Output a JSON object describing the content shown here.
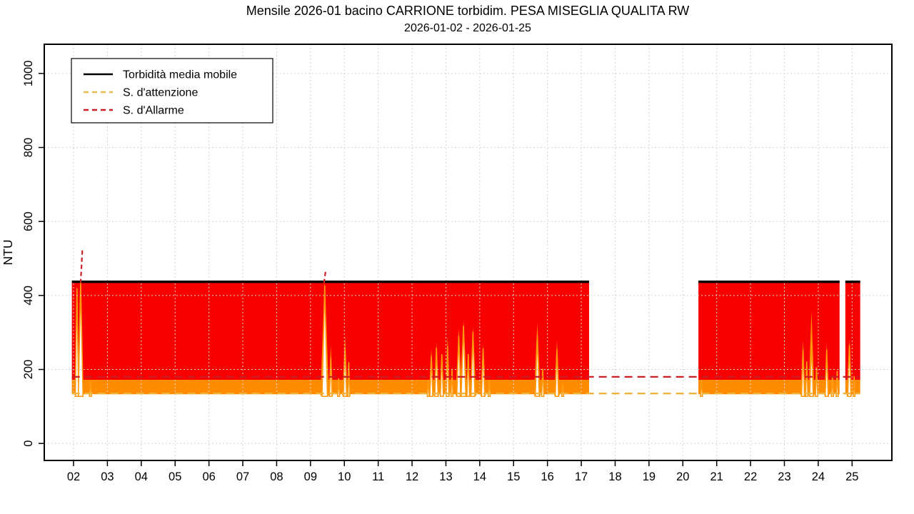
{
  "chart_data": {
    "type": "area",
    "title": "Mensile 2026-01 bacino CARRIONE torbidim. PESA MISEGLIA QUALITA RW",
    "subtitle": "2026-01-02 - 2026-01-25",
    "ylabel": "NTU",
    "x_unit": "day of month, January 2026",
    "x_range": [
      1.135,
      26.175
    ],
    "y_range": [
      -46,
      1079
    ],
    "y_ticks": [
      0,
      200,
      400,
      600,
      800,
      1000
    ],
    "x_tick_labels": [
      "02",
      "03",
      "04",
      "05",
      "06",
      "07",
      "08",
      "09",
      "10",
      "11",
      "12",
      "13",
      "14",
      "15",
      "16",
      "17",
      "18",
      "19",
      "20",
      "21",
      "22",
      "23",
      "24",
      "25"
    ],
    "grid": {
      "on": true,
      "color": "#d4d4d4"
    },
    "legend": {
      "position": "top-left",
      "items": [
        {
          "label": "Torbidità media mobile",
          "color": "#000000",
          "dash": false
        },
        {
          "label": "S. d'attenzione",
          "color": "#e8bb4e",
          "dash": true
        },
        {
          "label": "S. d'Allarme",
          "color": "#c92028",
          "dash": true
        }
      ]
    },
    "series": {
      "moving_average": {
        "name": "Torbidità media mobile",
        "color": "#000000",
        "value_ntu": 437,
        "segments_days": [
          [
            1.95,
            17.23
          ],
          [
            20.46,
            24.63
          ],
          [
            24.8,
            25.24
          ]
        ]
      },
      "attention_threshold": {
        "name": "S. d'attenzione",
        "color": "#edb33c",
        "value_ntu": 135,
        "span_days": [
          1.95,
          25.24
        ]
      },
      "alarm_threshold": {
        "name": "S. d'Allarme",
        "color": "#c92028",
        "value_ntu": 180,
        "span_days": [
          1.95,
          25.24
        ]
      },
      "turbidity_band": {
        "name": "Torbidità",
        "color_above_alarm": "#f80000",
        "color_between_thresholds": "#ff8c00",
        "dip_edge_color": "#ff9a10",
        "base_ntu": 133,
        "orange_top_ntu": 172,
        "cap_ntu": 437,
        "blocks_days": [
          {
            "start": 1.95,
            "end": 17.23
          },
          {
            "start": 20.46,
            "end": 24.63
          },
          {
            "start": 24.8,
            "end": 25.24
          }
        ],
        "dips": [
          {
            "d": 2.1,
            "p": 420,
            "w": 0.1
          },
          {
            "d": 2.21,
            "p": 437,
            "w": 0.14
          },
          {
            "d": 2.5,
            "p": 168,
            "w": 0.06
          },
          {
            "d": 9.42,
            "p": 427,
            "w": 0.16,
            "f": 441
          },
          {
            "d": 9.6,
            "p": 232,
            "w": 0.08,
            "f": 266
          },
          {
            "d": 9.83,
            "p": 176,
            "w": 0.06
          },
          {
            "d": 10.02,
            "p": 256,
            "w": 0.1,
            "f": 292
          },
          {
            "d": 10.13,
            "p": 220,
            "w": 0.06
          },
          {
            "d": 12.48,
            "p": 172,
            "w": 0.06
          },
          {
            "d": 12.57,
            "p": 236,
            "w": 0.09,
            "f": 256
          },
          {
            "d": 12.72,
            "p": 258,
            "w": 0.1,
            "f": 272
          },
          {
            "d": 12.88,
            "p": 241,
            "w": 0.09
          },
          {
            "d": 13.05,
            "p": 262,
            "w": 0.08,
            "f": 292
          },
          {
            "d": 13.18,
            "p": 202,
            "w": 0.06
          },
          {
            "d": 13.38,
            "p": 291,
            "w": 0.12,
            "f": 311
          },
          {
            "d": 13.52,
            "p": 318,
            "w": 0.14,
            "f": 332
          },
          {
            "d": 13.66,
            "p": 242,
            "w": 0.08
          },
          {
            "d": 13.8,
            "p": 301,
            "w": 0.12,
            "f": 316
          },
          {
            "d": 14.1,
            "p": 256,
            "w": 0.1,
            "f": 268
          },
          {
            "d": 14.28,
            "p": 172,
            "w": 0.06
          },
          {
            "d": 15.7,
            "p": 291,
            "w": 0.12,
            "f": 326
          },
          {
            "d": 15.86,
            "p": 202,
            "w": 0.07
          },
          {
            "d": 16.28,
            "p": 253,
            "w": 0.1,
            "f": 278
          },
          {
            "d": 16.45,
            "p": 162,
            "w": 0.06
          },
          {
            "d": 20.55,
            "p": 172,
            "w": 0.06
          },
          {
            "d": 23.55,
            "p": 253,
            "w": 0.09,
            "f": 278
          },
          {
            "d": 23.66,
            "p": 222,
            "w": 0.07
          },
          {
            "d": 23.8,
            "p": 272,
            "w": 0.11,
            "f": 359
          },
          {
            "d": 23.95,
            "p": 206,
            "w": 0.07
          },
          {
            "d": 24.25,
            "p": 253,
            "w": 0.09,
            "f": 270
          },
          {
            "d": 24.42,
            "p": 182,
            "w": 0.06
          },
          {
            "d": 24.56,
            "p": 196,
            "w": 0.06
          },
          {
            "d": 24.92,
            "p": 266,
            "w": 0.1,
            "f": 281
          },
          {
            "d": 25.06,
            "p": 182,
            "w": 0.05
          }
        ],
        "alarm_spikes": [
          {
            "d": 2.23,
            "top_ntu": 525
          },
          {
            "d": 9.42,
            "top_ntu": 470
          }
        ]
      }
    }
  }
}
